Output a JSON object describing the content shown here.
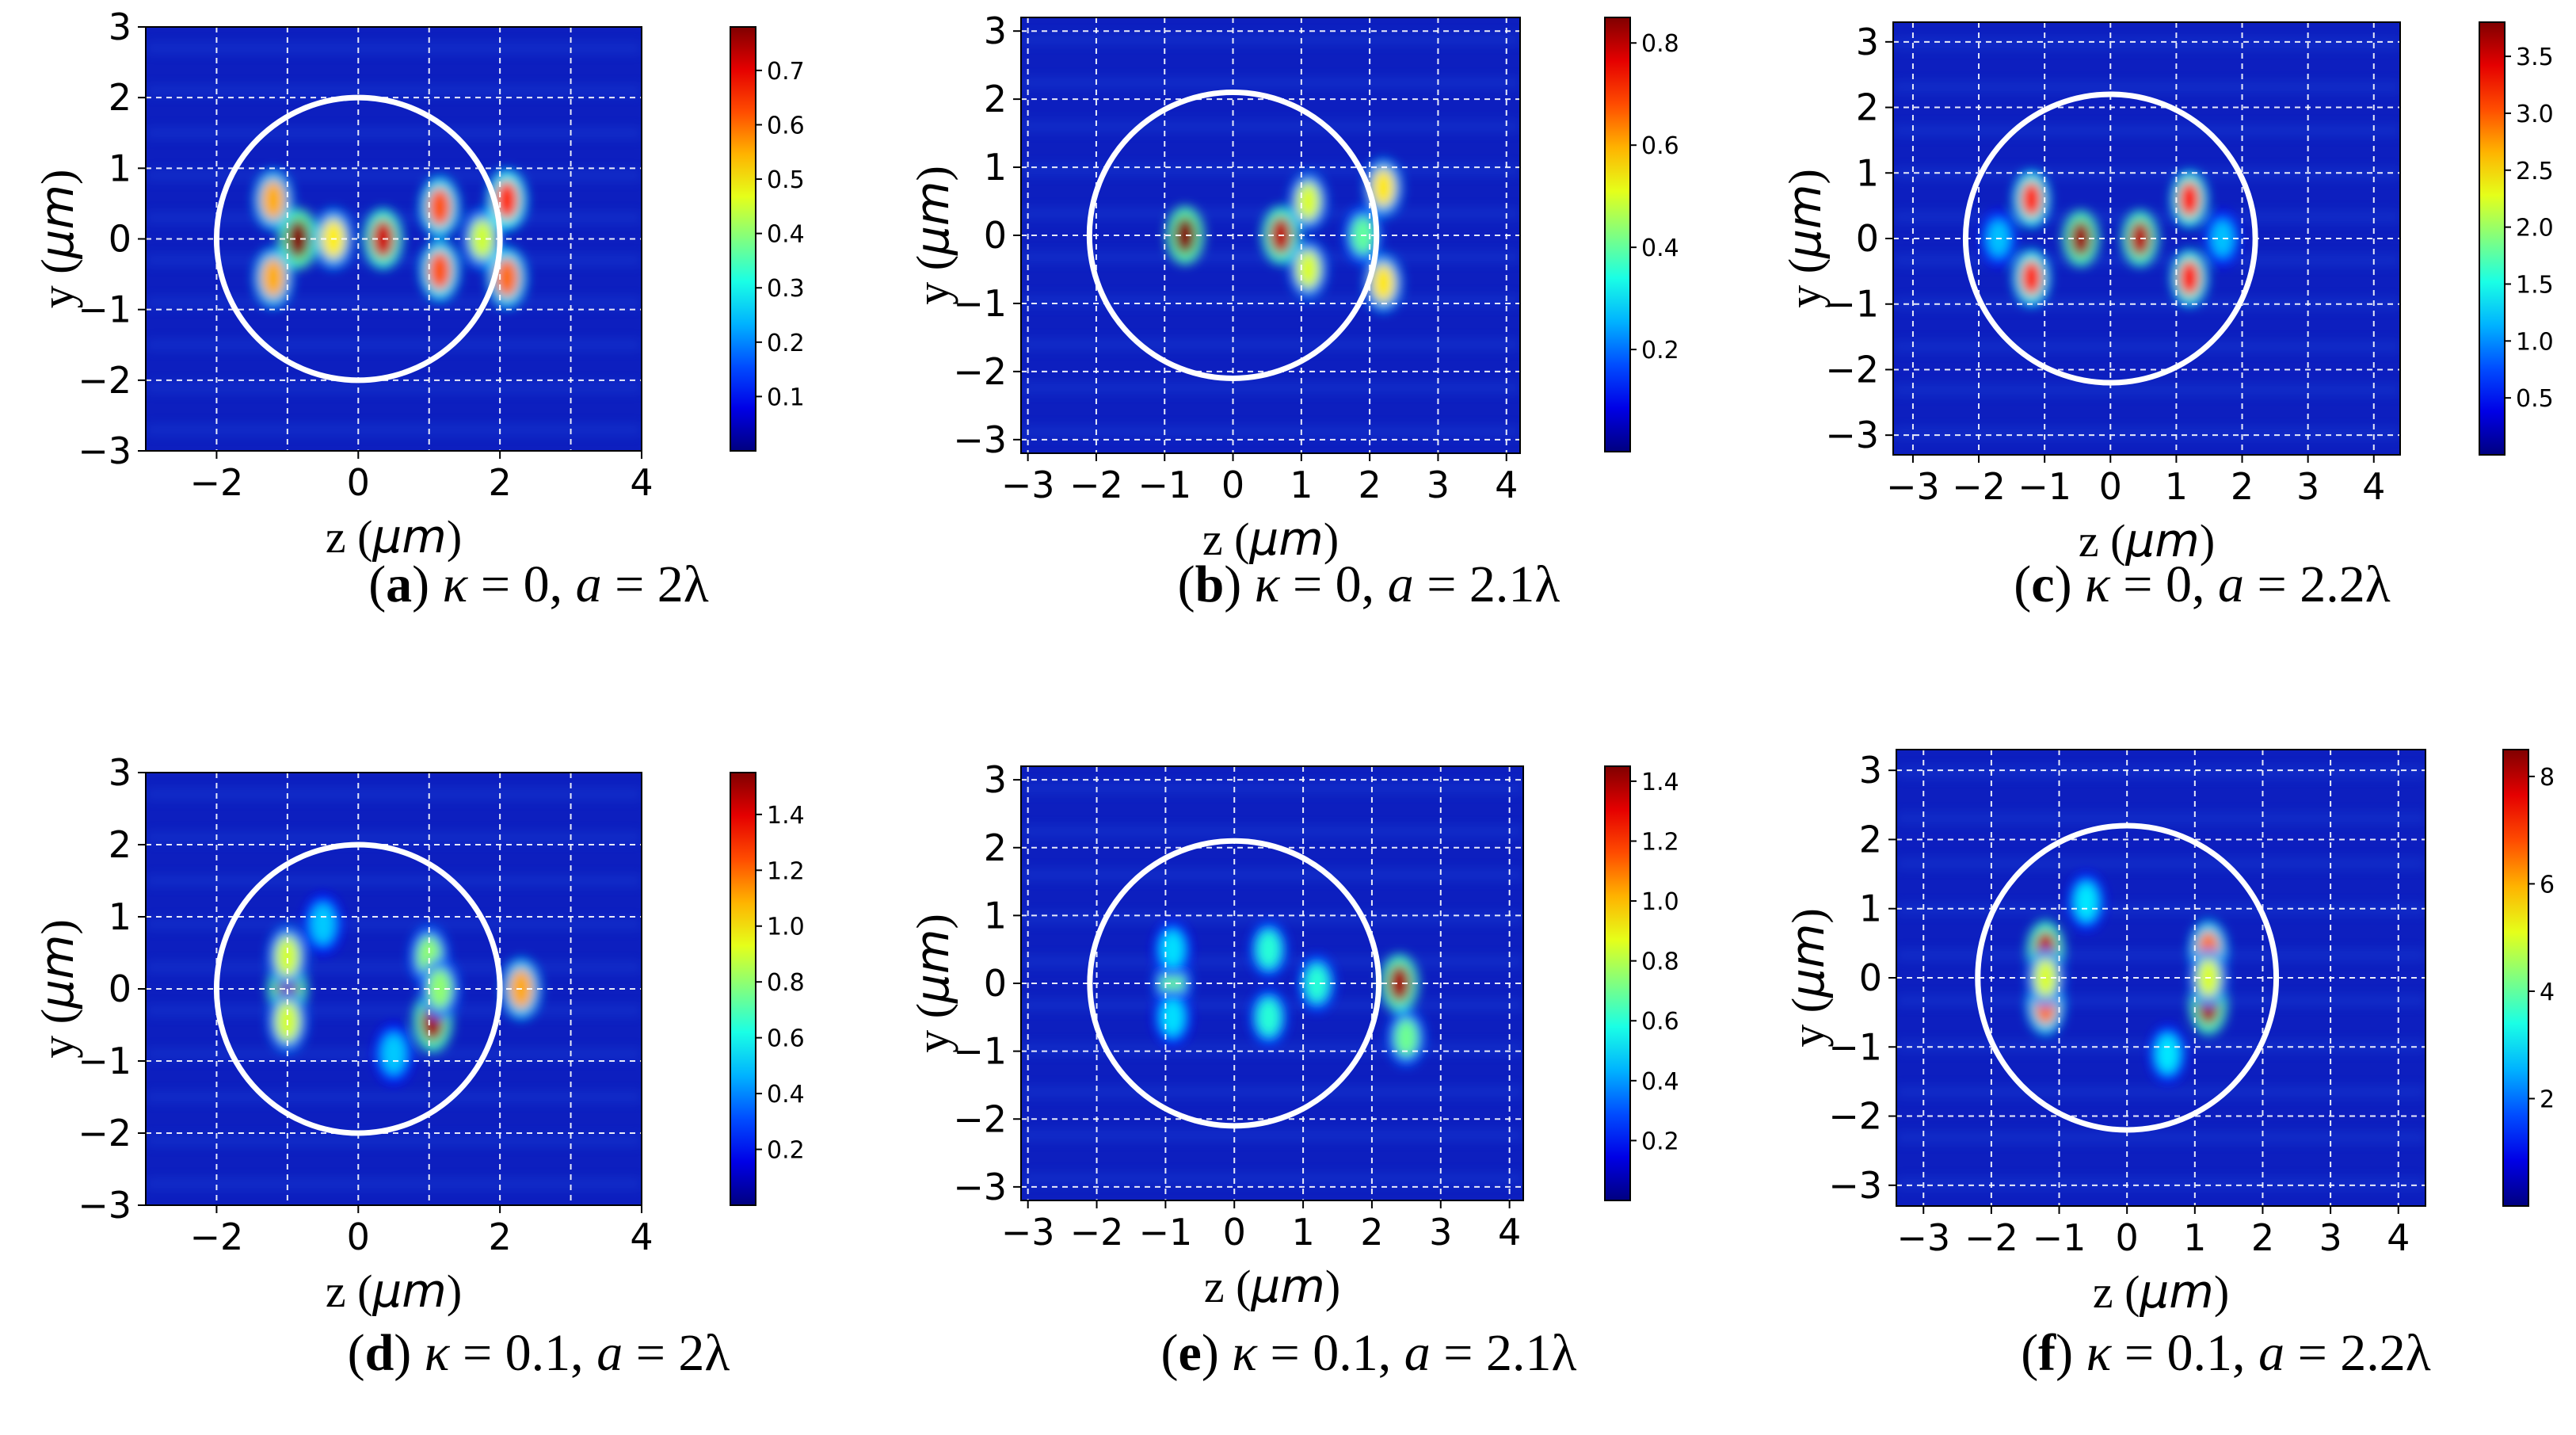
{
  "figure": {
    "title": ""
  },
  "chart_data": [
    {
      "id": "a",
      "type": "heatmap",
      "caption": {
        "letter": "a",
        "kappa": "0",
        "a": "2λ"
      },
      "xlabel": "z",
      "ylabel": "y",
      "unit": "μm",
      "xlim": [
        -3,
        4
      ],
      "ylim": [
        -3,
        3
      ],
      "xticks": [
        -2,
        0,
        2,
        4
      ],
      "yticks": [
        -3,
        -2,
        -1,
        0,
        1,
        2,
        3
      ],
      "xgrid": [
        -3,
        -2,
        -1,
        0,
        1,
        2,
        3,
        4
      ],
      "ygrid": [
        -3,
        -2,
        -1,
        0,
        1,
        2,
        3
      ],
      "circle_radius": 2,
      "colorbar": {
        "min": 0,
        "max": 0.78,
        "ticks": [
          "0.1",
          "0.2",
          "0.3",
          "0.4",
          "0.5",
          "0.6",
          "0.7"
        ],
        "tick_values": [
          0.1,
          0.2,
          0.3,
          0.4,
          0.5,
          0.6,
          0.7
        ]
      },
      "hotspots": [
        {
          "z": -0.85,
          "y": 0,
          "intensity": 0.78
        },
        {
          "z": 0.35,
          "y": 0,
          "intensity": 0.72
        },
        {
          "z": -1.2,
          "y": 0.55,
          "intensity": 0.55
        },
        {
          "z": -1.2,
          "y": -0.55,
          "intensity": 0.55
        },
        {
          "z": -0.35,
          "y": 0,
          "intensity": 0.5
        },
        {
          "z": 1.15,
          "y": 0.45,
          "intensity": 0.62
        },
        {
          "z": 1.15,
          "y": -0.45,
          "intensity": 0.62
        },
        {
          "z": 1.75,
          "y": 0,
          "intensity": 0.45
        },
        {
          "z": 2.1,
          "y": 0.55,
          "intensity": 0.65
        },
        {
          "z": 2.1,
          "y": -0.55,
          "intensity": 0.6
        }
      ]
    },
    {
      "id": "b",
      "type": "heatmap",
      "caption": {
        "letter": "b",
        "kappa": "0",
        "a": "2.1λ"
      },
      "xlabel": "z",
      "ylabel": "y",
      "unit": "μm",
      "xlim": [
        -3.1,
        4.2
      ],
      "ylim": [
        -3.2,
        3.2
      ],
      "xticks": [
        -3,
        -2,
        -1,
        0,
        1,
        2,
        3,
        4
      ],
      "yticks": [
        -3,
        -2,
        -1,
        0,
        1,
        2,
        3
      ],
      "xgrid": [
        -3,
        -2,
        -1,
        0,
        1,
        2,
        3,
        4
      ],
      "ygrid": [
        -3,
        -2,
        -1,
        0,
        1,
        2,
        3
      ],
      "circle_radius": 2.1,
      "colorbar": {
        "min": 0,
        "max": 0.85,
        "ticks": [
          "0.2",
          "0.4",
          "0.6",
          "0.8"
        ],
        "tick_values": [
          0.2,
          0.4,
          0.6,
          0.8
        ]
      },
      "hotspots": [
        {
          "z": -0.7,
          "y": 0,
          "intensity": 0.85
        },
        {
          "z": 0.7,
          "y": 0,
          "intensity": 0.8
        },
        {
          "z": 1.1,
          "y": 0.5,
          "intensity": 0.5
        },
        {
          "z": 1.1,
          "y": -0.5,
          "intensity": 0.5
        },
        {
          "z": 1.9,
          "y": 0,
          "intensity": 0.4
        },
        {
          "z": 2.2,
          "y": 0.7,
          "intensity": 0.55
        },
        {
          "z": 2.2,
          "y": -0.7,
          "intensity": 0.55
        }
      ]
    },
    {
      "id": "c",
      "type": "heatmap",
      "caption": {
        "letter": "c",
        "kappa": "0",
        "a": "2.2λ"
      },
      "xlabel": "z",
      "ylabel": "y",
      "unit": "μm",
      "xlim": [
        -3.3,
        4.4
      ],
      "ylim": [
        -3.3,
        3.3
      ],
      "xticks": [
        -3,
        -2,
        -1,
        0,
        1,
        2,
        3,
        4
      ],
      "yticks": [
        -3,
        -2,
        -1,
        0,
        1,
        2,
        3
      ],
      "xgrid": [
        -3,
        -2,
        -1,
        0,
        1,
        2,
        3,
        4
      ],
      "ygrid": [
        -3,
        -2,
        -1,
        0,
        1,
        2,
        3
      ],
      "circle_radius": 2.2,
      "colorbar": {
        "min": 0,
        "max": 3.8,
        "ticks": [
          "0.5",
          "1.0",
          "1.5",
          "2.0",
          "2.5",
          "3.0",
          "3.5"
        ],
        "tick_values": [
          0.5,
          1.0,
          1.5,
          2.0,
          2.5,
          3.0,
          3.5
        ]
      },
      "hotspots": [
        {
          "z": -0.45,
          "y": 0,
          "intensity": 3.7
        },
        {
          "z": 0.45,
          "y": 0,
          "intensity": 3.6
        },
        {
          "z": -1.2,
          "y": 0.6,
          "intensity": 3.2
        },
        {
          "z": -1.2,
          "y": -0.6,
          "intensity": 3.2
        },
        {
          "z": 1.2,
          "y": 0.6,
          "intensity": 3.3
        },
        {
          "z": 1.2,
          "y": -0.6,
          "intensity": 3.3
        },
        {
          "z": -1.7,
          "y": 0,
          "intensity": 1.2
        },
        {
          "z": 1.7,
          "y": 0,
          "intensity": 1.2
        }
      ]
    },
    {
      "id": "d",
      "type": "heatmap",
      "caption": {
        "letter": "d",
        "kappa": "0.1",
        "a": "2λ"
      },
      "xlabel": "z",
      "ylabel": "y",
      "unit": "μm",
      "xlim": [
        -3,
        4
      ],
      "ylim": [
        -3,
        3
      ],
      "xticks": [
        -2,
        0,
        2,
        4
      ],
      "yticks": [
        -3,
        -2,
        -1,
        0,
        1,
        2,
        3
      ],
      "xgrid": [
        -3,
        -2,
        -1,
        0,
        1,
        2,
        3,
        4
      ],
      "ygrid": [
        -3,
        -2,
        -1,
        0,
        1,
        2,
        3
      ],
      "circle_radius": 2,
      "colorbar": {
        "min": 0,
        "max": 1.55,
        "ticks": [
          "0.2",
          "0.4",
          "0.6",
          "0.8",
          "1.0",
          "1.2",
          "1.4"
        ],
        "tick_values": [
          0.2,
          0.4,
          0.6,
          0.8,
          1.0,
          1.2,
          1.4
        ]
      },
      "hotspots": [
        {
          "z": -1.0,
          "y": 0,
          "intensity": 1.5
        },
        {
          "z": 1.05,
          "y": -0.45,
          "intensity": 1.5
        },
        {
          "z": -1.0,
          "y": 0.45,
          "intensity": 0.9
        },
        {
          "z": -1.0,
          "y": -0.45,
          "intensity": 0.9
        },
        {
          "z": 1.0,
          "y": 0.45,
          "intensity": 0.8
        },
        {
          "z": 1.15,
          "y": 0,
          "intensity": 0.8
        },
        {
          "z": 2.3,
          "y": 0,
          "intensity": 1.1
        },
        {
          "z": -0.5,
          "y": 0.9,
          "intensity": 0.5
        },
        {
          "z": 0.5,
          "y": -0.9,
          "intensity": 0.5
        }
      ]
    },
    {
      "id": "e",
      "type": "heatmap",
      "caption": {
        "letter": "e",
        "kappa": "0.1",
        "a": "2.1λ"
      },
      "xlabel": "z",
      "ylabel": "y",
      "unit": "μm",
      "xlim": [
        -3.1,
        4.2
      ],
      "ylim": [
        -3.2,
        3.2
      ],
      "xticks": [
        -3,
        -2,
        -1,
        0,
        1,
        2,
        3,
        4
      ],
      "yticks": [
        -3,
        -2,
        -1,
        0,
        1,
        2,
        3
      ],
      "xgrid": [
        -3,
        -2,
        -1,
        0,
        1,
        2,
        3,
        4
      ],
      "ygrid": [
        -3,
        -2,
        -1,
        0,
        1,
        2,
        3
      ],
      "circle_radius": 2.1,
      "colorbar": {
        "min": 0,
        "max": 1.45,
        "ticks": [
          "0.2",
          "0.4",
          "0.6",
          "0.8",
          "1.0",
          "1.2",
          "1.4"
        ],
        "tick_values": [
          0.2,
          0.4,
          0.6,
          0.8,
          1.0,
          1.2,
          1.4
        ]
      },
      "hotspots": [
        {
          "z": 2.4,
          "y": 0,
          "intensity": 1.4
        },
        {
          "z": -0.9,
          "y": 0,
          "intensity": 0.7
        },
        {
          "z": 0.5,
          "y": 0.5,
          "intensity": 0.6
        },
        {
          "z": 0.5,
          "y": -0.5,
          "intensity": 0.6
        },
        {
          "z": 1.2,
          "y": 0,
          "intensity": 0.6
        },
        {
          "z": 2.5,
          "y": -0.8,
          "intensity": 0.7
        },
        {
          "z": -0.9,
          "y": 0.5,
          "intensity": 0.5
        },
        {
          "z": -0.9,
          "y": -0.5,
          "intensity": 0.5
        }
      ]
    },
    {
      "id": "f",
      "type": "heatmap",
      "caption": {
        "letter": "f",
        "kappa": "0.1",
        "a": "2.2λ"
      },
      "xlabel": "z",
      "ylabel": "y",
      "unit": "μm",
      "xlim": [
        -3.4,
        4.4
      ],
      "ylim": [
        -3.3,
        3.3
      ],
      "xticks": [
        -3,
        -2,
        -1,
        0,
        1,
        2,
        3,
        4
      ],
      "yticks": [
        -3,
        -2,
        -1,
        0,
        1,
        2,
        3
      ],
      "xgrid": [
        -3,
        -2,
        -1,
        0,
        1,
        2,
        3,
        4
      ],
      "ygrid": [
        -3,
        -2,
        -1,
        0,
        1,
        2,
        3
      ],
      "circle_radius": 2.2,
      "colorbar": {
        "min": 0,
        "max": 8.5,
        "ticks": [
          "2",
          "4",
          "6",
          "8"
        ],
        "tick_values": [
          2,
          4,
          6,
          8
        ]
      },
      "hotspots": [
        {
          "z": -1.2,
          "y": 0.4,
          "intensity": 8.0
        },
        {
          "z": 1.2,
          "y": -0.4,
          "intensity": 8.2
        },
        {
          "z": -1.2,
          "y": -0.4,
          "intensity": 6.5
        },
        {
          "z": 1.2,
          "y": 0.4,
          "intensity": 6.5
        },
        {
          "z": -1.2,
          "y": 0,
          "intensity": 5.0
        },
        {
          "z": 1.2,
          "y": 0,
          "intensity": 5.0
        },
        {
          "z": -0.6,
          "y": 1.1,
          "intensity": 3.0
        },
        {
          "z": 0.6,
          "y": -1.1,
          "intensity": 3.0
        }
      ]
    }
  ]
}
